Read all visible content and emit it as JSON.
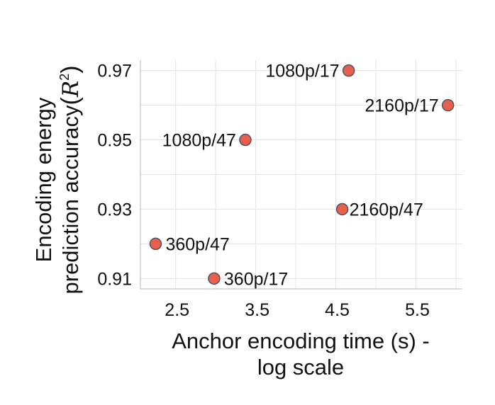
{
  "chart_data": {
    "type": "scatter",
    "xlabel": [
      "Anchor encoding time (s) -",
      "log scale"
    ],
    "ylabel": [
      "Encoding energy",
      "prediction accuracy",
      "R",
      "2"
    ],
    "xlim": [
      2.06,
      6.08
    ],
    "ylim": [
      0.907,
      0.973
    ],
    "x_ticks": [
      2.5,
      3.5,
      4.5,
      5.5
    ],
    "x_tick_labels": [
      "2.5",
      "3.5",
      "4.5",
      "5.5"
    ],
    "x_grid": [
      2.5,
      3.0,
      3.5,
      4.0,
      4.5,
      5.0,
      5.5,
      6.0
    ],
    "y_ticks": [
      0.91,
      0.93,
      0.95,
      0.97
    ],
    "y_tick_labels": [
      "0.91",
      "0.93",
      "0.95",
      "0.97"
    ],
    "y_grid": [
      0.91,
      0.92,
      0.93,
      0.94,
      0.95,
      0.96,
      0.97
    ],
    "grid": true,
    "marker_color": "#e8604c",
    "marker_edge_color": "#4b5563",
    "points": [
      {
        "label": "1080p/17",
        "x": 4.66,
        "y": 0.97,
        "label_side": "left"
      },
      {
        "label": "2160p/17",
        "x": 5.9,
        "y": 0.96,
        "label_side": "left"
      },
      {
        "label": "1080p/47",
        "x": 3.37,
        "y": 0.95,
        "label_side": "left"
      },
      {
        "label": "2160p/47",
        "x": 4.58,
        "y": 0.93,
        "label_side": "right"
      },
      {
        "label": "360p/47",
        "x": 2.25,
        "y": 0.92,
        "label_side": "right"
      },
      {
        "label": "360p/17",
        "x": 2.98,
        "y": 0.91,
        "label_side": "right"
      }
    ]
  }
}
